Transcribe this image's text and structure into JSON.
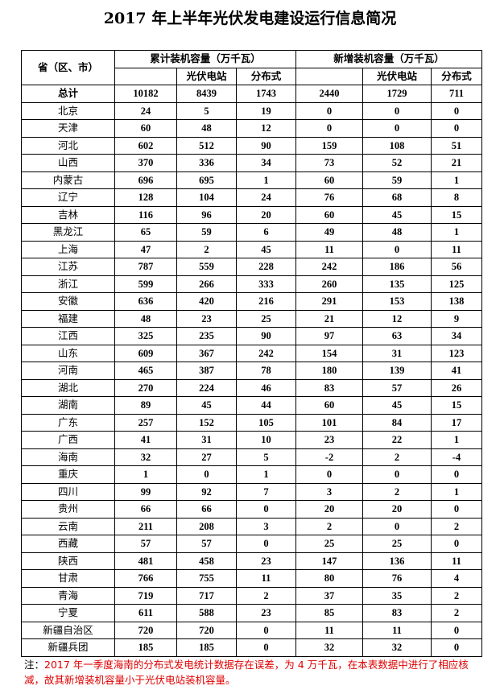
{
  "title": "2017 年上半年光伏发电建设运行信息简况",
  "header": {
    "region": "省（区、市）",
    "groups": [
      {
        "label": "累计装机容量（万千瓦）",
        "sub": [
          "光伏电站",
          "分布式"
        ]
      },
      {
        "label": "新增装机容量（万千瓦）",
        "sub": [
          "光伏电站",
          "分布式"
        ]
      }
    ]
  },
  "rows": [
    [
      "总计",
      10182,
      8439,
      1743,
      2440,
      1729,
      711
    ],
    [
      "北京",
      24,
      5,
      19,
      0,
      0,
      0
    ],
    [
      "天津",
      60,
      48,
      12,
      0,
      0,
      0
    ],
    [
      "河北",
      602,
      512,
      90,
      159,
      108,
      51
    ],
    [
      "山西",
      370,
      336,
      34,
      73,
      52,
      21
    ],
    [
      "内蒙古",
      696,
      695,
      1,
      60,
      59,
      1
    ],
    [
      "辽宁",
      128,
      104,
      24,
      76,
      68,
      8
    ],
    [
      "吉林",
      116,
      96,
      20,
      60,
      45,
      15
    ],
    [
      "黑龙江",
      65,
      59,
      6,
      49,
      48,
      1
    ],
    [
      "上海",
      47,
      2,
      45,
      11,
      0,
      11
    ],
    [
      "江苏",
      787,
      559,
      228,
      242,
      186,
      56
    ],
    [
      "浙江",
      599,
      266,
      333,
      260,
      135,
      125
    ],
    [
      "安徽",
      636,
      420,
      216,
      291,
      153,
      138
    ],
    [
      "福建",
      48,
      23,
      25,
      21,
      12,
      9
    ],
    [
      "江西",
      325,
      235,
      90,
      97,
      63,
      34
    ],
    [
      "山东",
      609,
      367,
      242,
      154,
      31,
      123
    ],
    [
      "河南",
      465,
      387,
      78,
      180,
      139,
      41
    ],
    [
      "湖北",
      270,
      224,
      46,
      83,
      57,
      26
    ],
    [
      "湖南",
      89,
      45,
      44,
      60,
      45,
      15
    ],
    [
      "广东",
      257,
      152,
      105,
      101,
      84,
      17
    ],
    [
      "广西",
      41,
      31,
      10,
      23,
      22,
      1
    ],
    [
      "海南",
      32,
      27,
      5,
      -2,
      2,
      -4
    ],
    [
      "重庆",
      1,
      0,
      1,
      0,
      0,
      0
    ],
    [
      "四川",
      99,
      92,
      7,
      3,
      2,
      1
    ],
    [
      "贵州",
      66,
      66,
      0,
      20,
      20,
      0
    ],
    [
      "云南",
      211,
      208,
      3,
      2,
      0,
      2
    ],
    [
      "西藏",
      57,
      57,
      0,
      25,
      25,
      0
    ],
    [
      "陕西",
      481,
      458,
      23,
      147,
      136,
      11
    ],
    [
      "甘肃",
      766,
      755,
      11,
      80,
      76,
      4
    ],
    [
      "青海",
      719,
      717,
      2,
      37,
      35,
      2
    ],
    [
      "宁夏",
      611,
      588,
      23,
      85,
      83,
      2
    ],
    [
      "新疆自治区",
      720,
      720,
      0,
      11,
      11,
      0
    ],
    [
      "新疆兵团",
      185,
      185,
      0,
      32,
      32,
      0
    ]
  ],
  "note": {
    "label": "注：",
    "text": "2017 年一季度海南的分布式发电统计数据存在误差，为 4 万千瓦，在本表数据中进行了相应核减，故其新增装机容量小于光伏电站装机容量。"
  }
}
